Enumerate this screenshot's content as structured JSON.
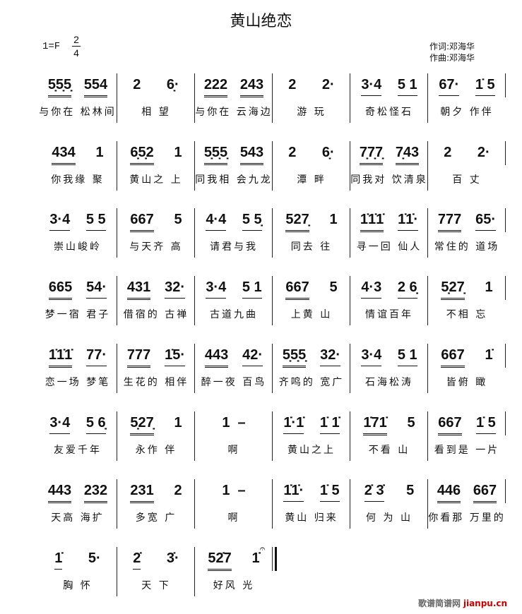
{
  "title": "黄山绝恋",
  "key": "1=F",
  "time_signature": {
    "top": "2",
    "bottom": "4"
  },
  "credits": {
    "lyricist": "作词:邓海华",
    "composer": "作曲:邓海华"
  },
  "watermark": {
    "cn": "歌谱简谱网",
    "url": "jianpu.cn",
    "color": "#cc0000"
  },
  "rows": [
    {
      "measures": [
        {
          "groups": [
            {
              "t": "5̣5̣5̣",
              "u": 2
            },
            {
              "t": "554",
              "u": 2
            }
          ],
          "lyric": "与你在 松林间"
        },
        {
          "groups": [
            {
              "t": "2",
              "u": 0
            },
            {
              "t": "6̣·",
              "u": 0
            }
          ],
          "lyric": "相 望"
        },
        {
          "groups": [
            {
              "t": "222",
              "u": 2
            },
            {
              "t": "243",
              "u": 2
            }
          ],
          "lyric": "与你在 云海边"
        },
        {
          "groups": [
            {
              "t": "2",
              "u": 0
            },
            {
              "t": "2·",
              "u": 0
            }
          ],
          "lyric": "游 玩"
        },
        {
          "groups": [
            {
              "t": "3·4",
              "u": 1
            },
            {
              "t": "5 1",
              "u": 1
            }
          ],
          "lyric": "奇松怪石"
        },
        {
          "groups": [
            {
              "t": "67·",
              "u": 1
            },
            {
              "t": "1̇ 5",
              "u": 1
            }
          ],
          "lyric": "朝夕 作伴"
        }
      ]
    },
    {
      "measures": [
        {
          "groups": [
            {
              "t": "434",
              "u": 2
            },
            {
              "t": "1",
              "u": 0
            }
          ],
          "lyric": "你我缘 聚"
        },
        {
          "groups": [
            {
              "t": "6̣5̣2",
              "u": 2
            },
            {
              "t": "1",
              "u": 0
            }
          ],
          "lyric": "黄山之 上"
        },
        {
          "groups": [
            {
              "t": "5̣5̣5̣",
              "u": 2
            },
            {
              "t": "543",
              "u": 2
            }
          ],
          "lyric": "同我相 会九龙"
        },
        {
          "groups": [
            {
              "t": "2",
              "u": 0
            },
            {
              "t": "6̣·",
              "u": 0
            }
          ],
          "lyric": "潭 畔"
        },
        {
          "groups": [
            {
              "t": "7̣7̣7̣",
              "u": 2
            },
            {
              "t": "7̣43",
              "u": 2
            }
          ],
          "lyric": "同我对 饮清泉"
        },
        {
          "groups": [
            {
              "t": "2",
              "u": 0
            },
            {
              "t": "2·",
              "u": 0
            }
          ],
          "lyric": "百 丈"
        }
      ]
    },
    {
      "measures": [
        {
          "groups": [
            {
              "t": "3·4",
              "u": 1
            },
            {
              "t": "5 5",
              "u": 1
            }
          ],
          "lyric": "崇山峻岭"
        },
        {
          "groups": [
            {
              "t": "667",
              "u": 2
            },
            {
              "t": "5",
              "u": 0
            }
          ],
          "lyric": "与天齐 高"
        },
        {
          "groups": [
            {
              "t": "4·4",
              "u": 1
            },
            {
              "t": "5 5̣",
              "u": 1
            }
          ],
          "lyric": "请君与我"
        },
        {
          "groups": [
            {
              "t": "527̣",
              "u": 2
            },
            {
              "t": "1",
              "u": 0
            }
          ],
          "lyric": "同去 往"
        },
        {
          "groups": [
            {
              "t": "1̇1̇1̇",
              "u": 2
            },
            {
              "t": "1̇1̇·",
              "u": 1
            }
          ],
          "lyric": "寻一回 仙人"
        },
        {
          "groups": [
            {
              "t": "777",
              "u": 2
            },
            {
              "t": "65·",
              "u": 1
            }
          ],
          "lyric": "常住的 道场"
        }
      ]
    },
    {
      "measures": [
        {
          "groups": [
            {
              "t": "665",
              "u": 2
            },
            {
              "t": "54·",
              "u": 1
            }
          ],
          "lyric": "梦一宿 君子"
        },
        {
          "groups": [
            {
              "t": "431",
              "u": 2
            },
            {
              "t": "32·",
              "u": 1
            }
          ],
          "lyric": "借宿的 古禅"
        },
        {
          "groups": [
            {
              "t": "3·4",
              "u": 1
            },
            {
              "t": "5 1",
              "u": 1
            }
          ],
          "lyric": "古道九曲"
        },
        {
          "groups": [
            {
              "t": "667",
              "u": 2
            },
            {
              "t": "5",
              "u": 0
            }
          ],
          "lyric": "上黄 山"
        },
        {
          "groups": [
            {
              "t": "4·3",
              "u": 1
            },
            {
              "t": "2 6̣",
              "u": 1
            }
          ],
          "lyric": "情谊百年"
        },
        {
          "groups": [
            {
              "t": "5̣27̣",
              "u": 2
            },
            {
              "t": "1",
              "u": 0
            }
          ],
          "lyric": "不相 忘"
        }
      ]
    },
    {
      "measures": [
        {
          "groups": [
            {
              "t": "1̇1̇1̇",
              "u": 2
            },
            {
              "t": "77·",
              "u": 1
            }
          ],
          "lyric": "恋一场 梦笔"
        },
        {
          "groups": [
            {
              "t": "777",
              "u": 2
            },
            {
              "t": "1̇5·",
              "u": 1
            }
          ],
          "lyric": "生花的 相伴"
        },
        {
          "groups": [
            {
              "t": "443",
              "u": 2
            },
            {
              "t": "42·",
              "u": 1
            }
          ],
          "lyric": "醉一夜 百鸟"
        },
        {
          "groups": [
            {
              "t": "5̣5̣5̣",
              "u": 2
            },
            {
              "t": "32·",
              "u": 1
            }
          ],
          "lyric": "齐鸣的 宽广"
        },
        {
          "groups": [
            {
              "t": "3·4",
              "u": 1
            },
            {
              "t": "5 1",
              "u": 1
            }
          ],
          "lyric": "石海松涛"
        },
        {
          "groups": [
            {
              "t": "667",
              "u": 2
            },
            {
              "t": "1̇",
              "u": 0
            }
          ],
          "lyric": "皆俯 瞰"
        }
      ]
    },
    {
      "measures": [
        {
          "groups": [
            {
              "t": "3·4",
              "u": 1
            },
            {
              "t": "5 6̣",
              "u": 1
            }
          ],
          "lyric": "友爱千年"
        },
        {
          "groups": [
            {
              "t": "5̣27̣",
              "u": 2
            },
            {
              "t": "1",
              "u": 0
            }
          ],
          "lyric": "永作 伴"
        },
        {
          "groups": [
            {
              "t": "1  –",
              "u": 0
            }
          ],
          "lyric": "啊"
        },
        {
          "groups": [
            {
              "t": "1̇·1̇",
              "u": 1
            },
            {
              "t": "1̇ 1̇",
              "u": 1
            }
          ],
          "lyric": "黄山之上"
        },
        {
          "groups": [
            {
              "t": "1̇71̇",
              "u": 2
            },
            {
              "t": "5",
              "u": 0
            }
          ],
          "lyric": "不看 山"
        },
        {
          "groups": [
            {
              "t": "667",
              "u": 2
            },
            {
              "t": "1̇ 5",
              "u": 1
            }
          ],
          "lyric": "看到是 一片"
        }
      ]
    },
    {
      "measures": [
        {
          "groups": [
            {
              "t": "443",
              "u": 2
            },
            {
              "t": "232",
              "u": 2
            }
          ],
          "lyric": "天高 海扩"
        },
        {
          "groups": [
            {
              "t": "231",
              "u": 2
            },
            {
              "t": "2",
              "u": 0
            }
          ],
          "lyric": "多宽 广"
        },
        {
          "groups": [
            {
              "t": "1  –",
              "u": 0
            }
          ],
          "lyric": "啊"
        },
        {
          "groups": [
            {
              "t": "1̇1̇·",
              "u": 1
            },
            {
              "t": "1̇ 5",
              "u": 1
            }
          ],
          "lyric": "黄山 归来"
        },
        {
          "groups": [
            {
              "t": "2̇ 3̇",
              "u": 1
            },
            {
              "t": "5",
              "u": 0
            }
          ],
          "lyric": "何 为 山"
        },
        {
          "groups": [
            {
              "t": "446",
              "u": 2
            },
            {
              "t": "667",
              "u": 2
            }
          ],
          "lyric": "你看那 万里的"
        }
      ]
    },
    {
      "final": true,
      "measures": [
        {
          "groups": [
            {
              "t": "1̇",
              "u": 1
            },
            {
              "t": "5·",
              "u": 0
            }
          ],
          "lyric": "胸 怀"
        },
        {
          "groups": [
            {
              "t": "2̇",
              "u": 1
            },
            {
              "t": "3̇·",
              "u": 0
            }
          ],
          "lyric": "天 下"
        },
        {
          "groups": [
            {
              "t": "52̇7",
              "u": 2
            },
            {
              "t": "1̇",
              "u": 0,
              "fermata": "𝄐"
            }
          ],
          "lyric": "好风 光"
        }
      ]
    }
  ]
}
